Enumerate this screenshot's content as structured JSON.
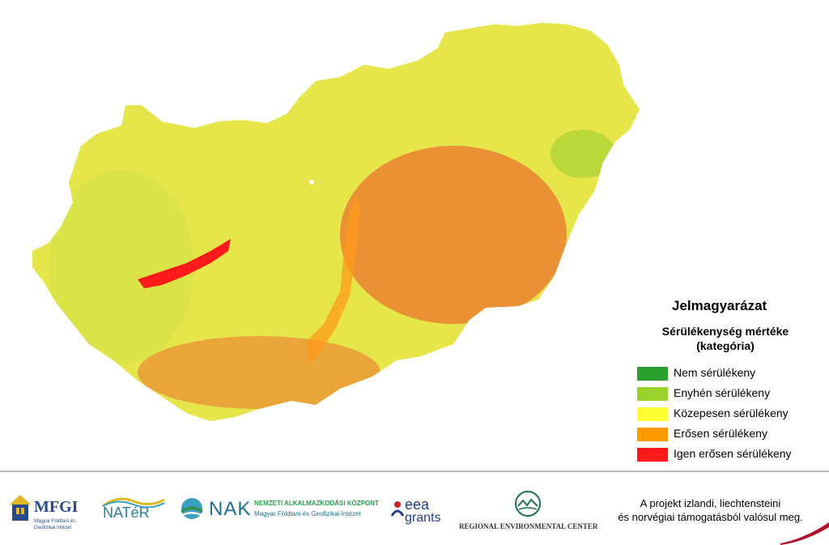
{
  "legend": {
    "title": "Jelmagyarázat",
    "subtitle_line1": "Sérülékenység mértéke",
    "subtitle_line2": "(kategória)",
    "items": [
      {
        "label": "Nem sérülékeny",
        "color": "#2ca02c"
      },
      {
        "label": "Enyhén sérülékeny",
        "color": "#99d22a"
      },
      {
        "label": "Közepesen sérülékeny",
        "color": "#ffff33"
      },
      {
        "label": "Erősen sérülékeny",
        "color": "#ff9900"
      },
      {
        "label": "Igen erősen sérülékeny",
        "color": "#ff1a1a"
      }
    ]
  },
  "footer": {
    "logos": {
      "mfgi": {
        "name": "MFGI",
        "sub1": "Magyar Földtani és",
        "sub2": "Geofizikai Intézet"
      },
      "nater": {
        "name": "NATéR"
      },
      "nak": {
        "name": "NAK",
        "line1": "NEMZETI ALKALMAZKODÁSI KÖZPONT",
        "line2": "Magyar Földtani és Geofizikai Intézet"
      },
      "eea": {
        "line1": "eea",
        "line2": "grants"
      },
      "rec": {
        "name": "REGIONAL ENVIRONMENTAL CENTER"
      }
    },
    "funding_line1": "A projekt izlandi, liechtensteini",
    "funding_line2": "és norvégiai támogatásból valósul meg."
  }
}
